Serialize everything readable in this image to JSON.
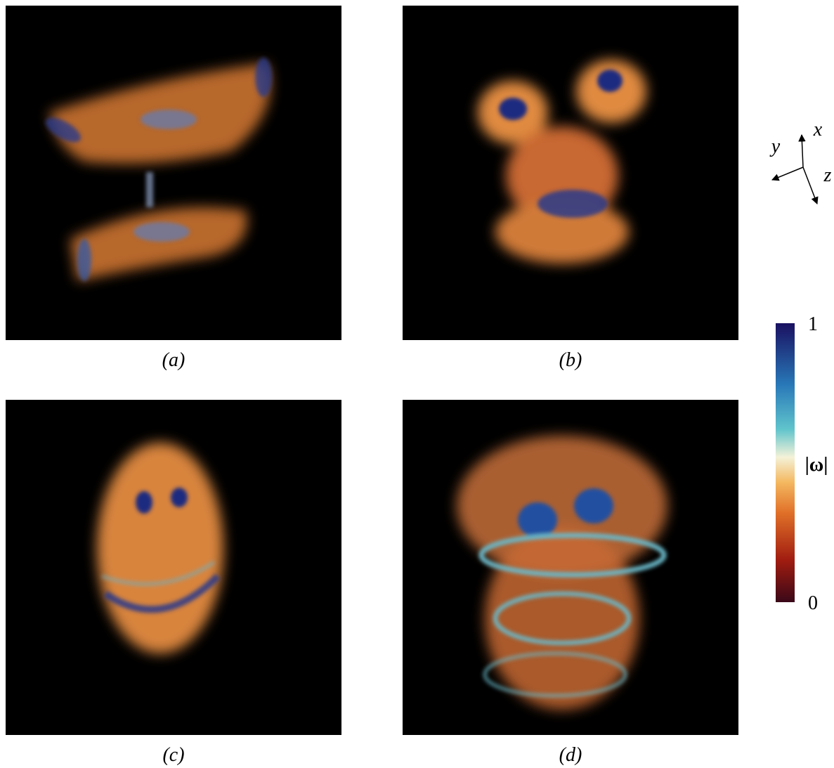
{
  "panels": [
    {
      "label": "(a)"
    },
    {
      "label": "(b)"
    },
    {
      "label": "(c)"
    },
    {
      "label": "(d)"
    }
  ],
  "axes": {
    "x": "x",
    "y": "y",
    "z": "z"
  },
  "colorbar": {
    "label": "|ω|",
    "ticks": [
      0,
      1
    ]
  }
}
